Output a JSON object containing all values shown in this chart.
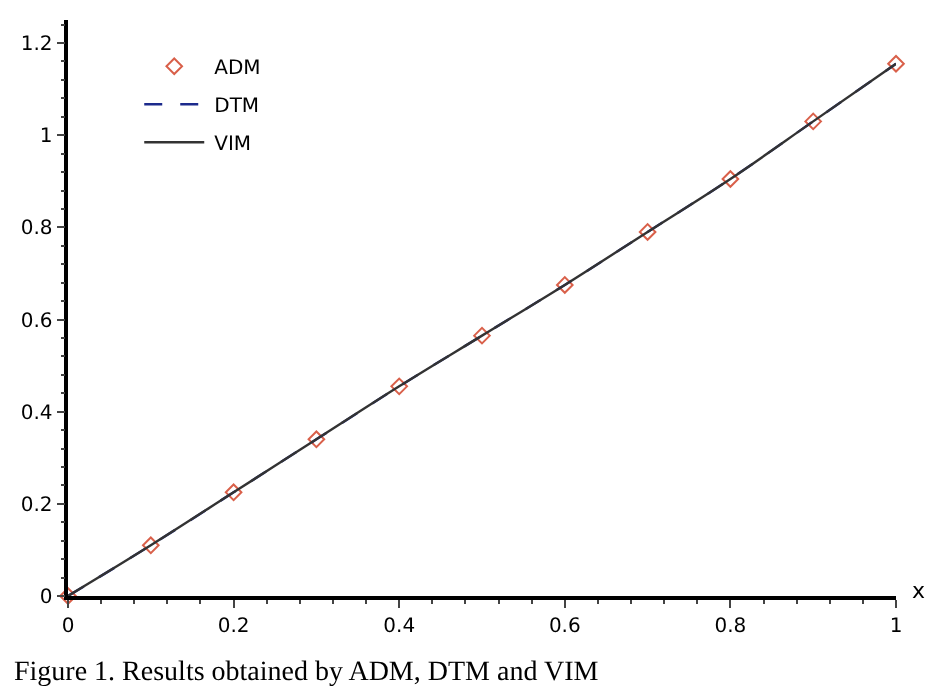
{
  "chart_data": {
    "type": "line",
    "xlabel": "x",
    "x": [
      0,
      0.1,
      0.2,
      0.3,
      0.4,
      0.5,
      0.6,
      0.7,
      0.8,
      0.9,
      1
    ],
    "series": [
      {
        "name": "ADM",
        "type": "scatter",
        "marker": "diamond",
        "color": "#d9604a",
        "values": [
          0,
          0.11,
          0.225,
          0.34,
          0.455,
          0.565,
          0.675,
          0.79,
          0.905,
          1.03,
          1.155
        ]
      },
      {
        "name": "DTM",
        "type": "line",
        "line_style": "dashed",
        "color": "#1c2a8c",
        "values": [
          0,
          0.11,
          0.225,
          0.34,
          0.455,
          0.565,
          0.675,
          0.79,
          0.905,
          1.03,
          1.155
        ]
      },
      {
        "name": "VIM",
        "type": "line",
        "line_style": "solid",
        "color": "#333333",
        "values": [
          0,
          0.11,
          0.225,
          0.34,
          0.455,
          0.565,
          0.675,
          0.79,
          0.905,
          1.03,
          1.155
        ]
      }
    ],
    "xlim": [
      0,
      1
    ],
    "xticks": [
      0,
      0.2,
      0.4,
      0.6,
      0.8,
      1
    ],
    "ylim": [
      0,
      1.25
    ],
    "yticks": [
      0,
      0.2,
      0.4,
      0.6,
      0.8,
      1,
      1.2
    ],
    "grid": false,
    "legend": "top left",
    "annotations": [
      "Figure 1. Results obtained by ADM, DTM and VIM"
    ]
  }
}
